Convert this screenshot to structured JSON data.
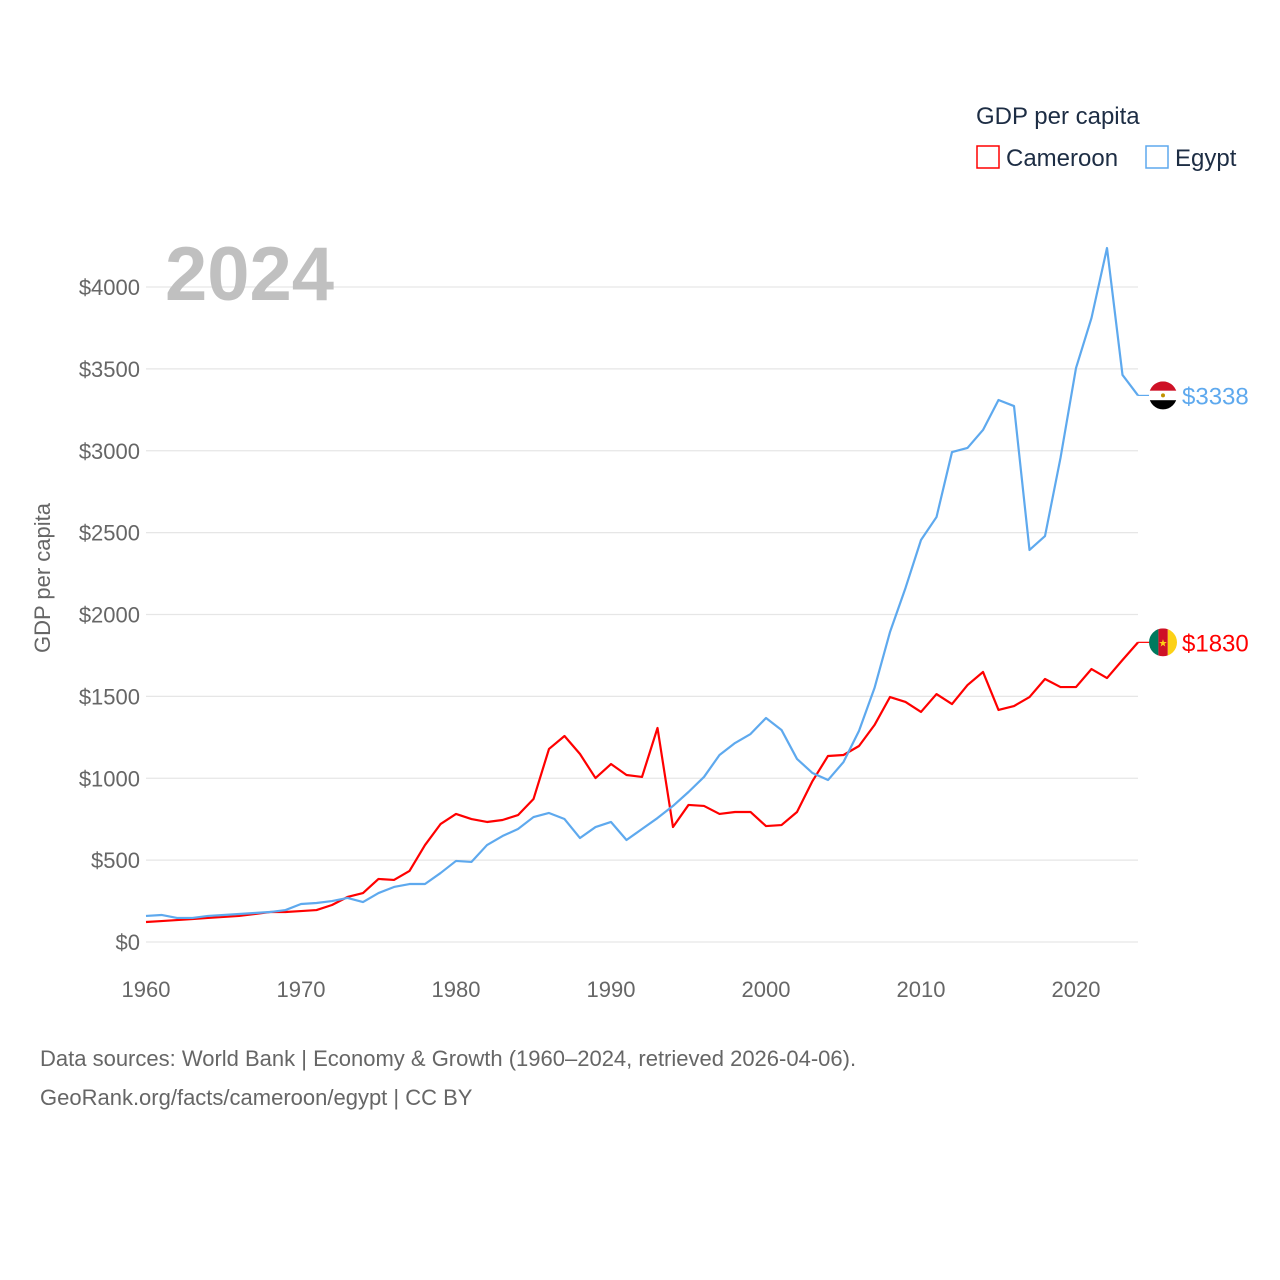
{
  "chart_data": {
    "type": "line",
    "year_label": "2024",
    "ylabel": "GDP per capita",
    "legend_title": "GDP per capita",
    "legend_position": "top-right",
    "xlim": [
      1960,
      2024
    ],
    "ylim": [
      0,
      4250
    ],
    "x_ticks": [
      1960,
      1970,
      1980,
      1990,
      2000,
      2010,
      2020
    ],
    "y_ticks": [
      0,
      500,
      1000,
      1500,
      2000,
      2500,
      3000,
      3500,
      4000
    ],
    "y_tick_labels": [
      "$0",
      "$500",
      "$1000",
      "$1500",
      "$2000",
      "$2500",
      "$3000",
      "$3500",
      "$4000"
    ],
    "grid": true,
    "series": [
      {
        "name": "Cameroon",
        "color": "#ff0000",
        "end_label": "$1830",
        "values": [
          122,
          128,
          134,
          140,
          147,
          153,
          159,
          171,
          183,
          183,
          189,
          195,
          226,
          275,
          299,
          385,
          379,
          434,
          592,
          720,
          782,
          751,
          733,
          745,
          775,
          873,
          1179,
          1258,
          1148,
          1001,
          1087,
          1020,
          1008,
          1307,
          702,
          837,
          831,
          782,
          794,
          794,
          708,
          714,
          794,
          983,
          1136,
          1142,
          1197,
          1325,
          1496,
          1466,
          1405,
          1514,
          1453,
          1569,
          1649,
          1417,
          1441,
          1496,
          1606,
          1557,
          1557,
          1667,
          1612,
          1722,
          1830
        ]
      },
      {
        "name": "Egypt",
        "color": "#5ea9ee",
        "end_label": "$3338",
        "values": [
          159,
          165,
          147,
          147,
          159,
          165,
          171,
          177,
          183,
          195,
          232,
          238,
          250,
          269,
          244,
          299,
          336,
          354,
          354,
          421,
          495,
          489,
          592,
          647,
          690,
          763,
          788,
          751,
          635,
          702,
          733,
          623,
          690,
          757,
          831,
          916,
          1008,
          1142,
          1215,
          1270,
          1368,
          1295,
          1118,
          1032,
          989,
          1099,
          1289,
          1551,
          1893,
          2162,
          2455,
          2595,
          2992,
          3017,
          3127,
          3310,
          3273,
          2394,
          2479,
          2956,
          3505,
          3811,
          4238,
          3463,
          3338
        ]
      }
    ]
  },
  "footer": {
    "line1": "Data sources: World Bank | Economy & Growth (1960–2024, retrieved 2026-04-06).",
    "line2": "GeoRank.org/facts/cameroon/egypt | CC BY"
  }
}
